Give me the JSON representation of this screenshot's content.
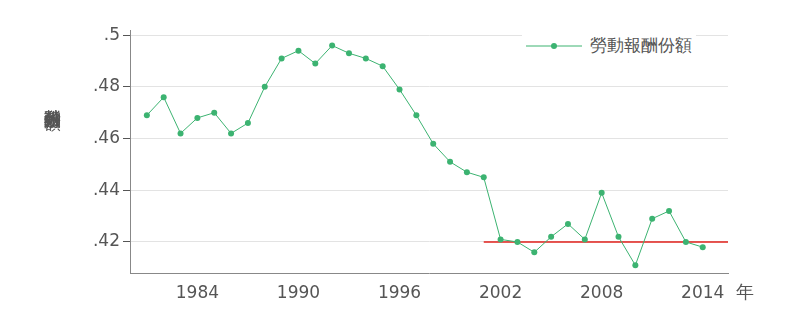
{
  "chart_data": {
    "type": "line",
    "x": [
      1981,
      1982,
      1983,
      1984,
      1985,
      1986,
      1987,
      1988,
      1989,
      1990,
      1991,
      1992,
      1993,
      1994,
      1995,
      1996,
      1997,
      1998,
      1999,
      2000,
      2001,
      2002,
      2003,
      2004,
      2005,
      2006,
      2007,
      2008,
      2009,
      2010,
      2011,
      2012,
      2013,
      2014
    ],
    "series": [
      {
        "name": "勞動報酬份額",
        "color": "#3cb371",
        "marker": "circle",
        "values": [
          0.469,
          0.476,
          0.462,
          0.468,
          0.47,
          0.462,
          0.466,
          0.48,
          0.491,
          0.494,
          0.489,
          0.496,
          0.493,
          0.491,
          0.488,
          0.479,
          0.469,
          0.458,
          0.451,
          0.447,
          0.445,
          0.421,
          0.42,
          0.416,
          0.422,
          0.427,
          0.421,
          0.439,
          0.422,
          0.411,
          0.429,
          0.432,
          0.42,
          0.418
        ]
      }
    ],
    "reference_line": {
      "y": 0.42,
      "x": [
        2001,
        2015.5
      ],
      "color": "#e0201b"
    },
    "xlim": [
      1980,
      2015.5
    ],
    "xticks": [
      1984,
      1990,
      1996,
      2002,
      2008,
      2014
    ],
    "ylim": [
      0.408,
      0.502
    ],
    "yticks": [
      {
        "value": 0.42,
        "label": ".42"
      },
      {
        "value": 0.44,
        "label": ".44"
      },
      {
        "value": 0.46,
        "label": ".46"
      },
      {
        "value": 0.48,
        "label": ".48"
      },
      {
        "value": 0.5,
        "label": ".5"
      }
    ],
    "xlabel": "年",
    "ylabel": "勞動報酬份額",
    "legend": "upper right",
    "grid": "y"
  }
}
